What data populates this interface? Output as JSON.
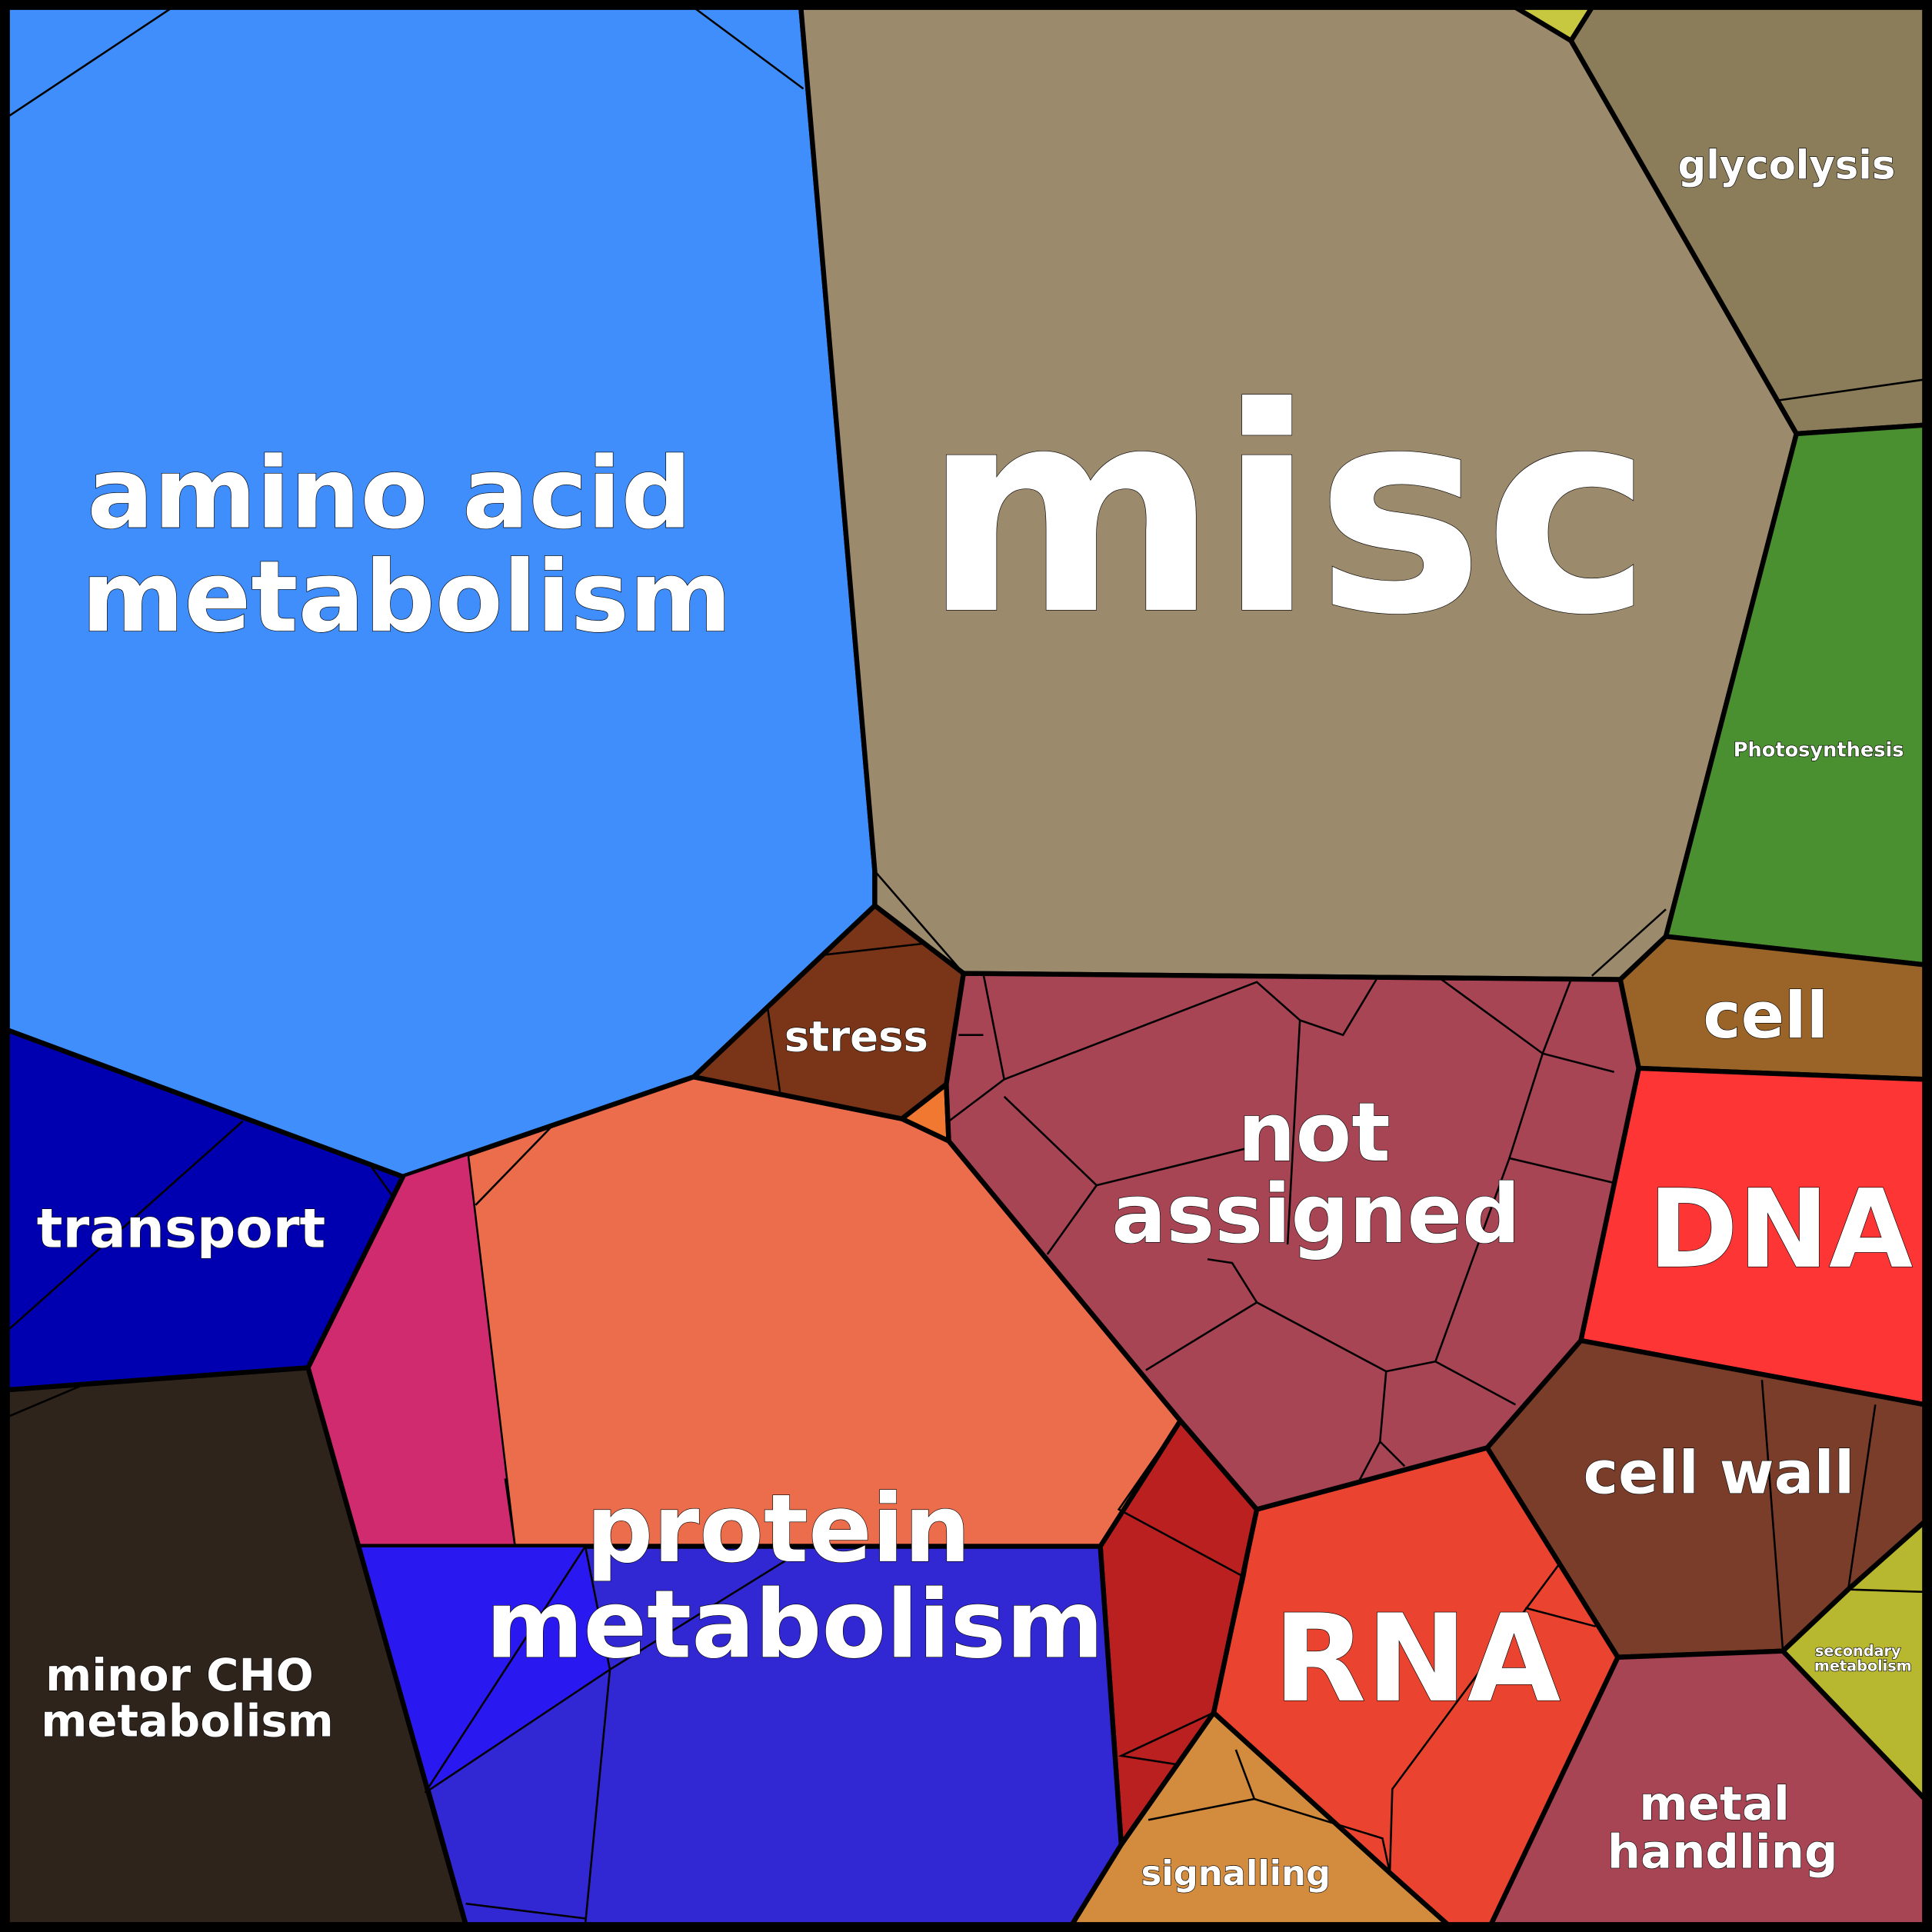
{
  "nodes": [
    {
      "label": [
        "amino acid",
        "metabolism"
      ]
    },
    {
      "label": [
        "misc"
      ]
    },
    {
      "label": [
        "glycolysis"
      ]
    },
    {
      "label": [
        "Photosynthesis"
      ]
    },
    {
      "label": [
        "cell"
      ]
    },
    {
      "label": [
        "DNA"
      ]
    },
    {
      "label": [
        "cell wall"
      ]
    },
    {
      "label": [
        "secondary",
        "metabolism"
      ]
    },
    {
      "label": [
        "metal",
        "handling"
      ]
    },
    {
      "label": [
        "RNA"
      ]
    },
    {
      "label": [
        "signalling"
      ]
    },
    {
      "label": [
        "protein",
        "metabolism"
      ]
    },
    {
      "label": [
        "minor CHO",
        "metabolism"
      ]
    },
    {
      "label": [
        "transport"
      ]
    },
    {
      "label": [
        "stress"
      ]
    },
    {
      "label": [
        "not",
        "assigned"
      ]
    }
  ]
}
